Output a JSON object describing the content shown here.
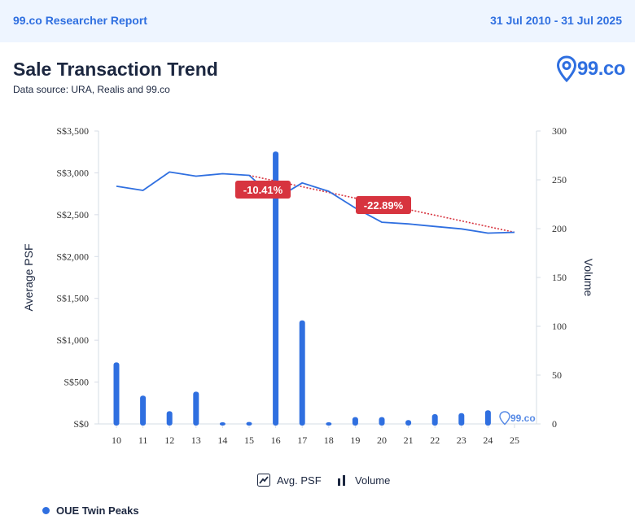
{
  "header": {
    "report_title": "99.co Researcher Report",
    "date_range": "31 Jul 2010 - 31 Jul 2025"
  },
  "page": {
    "title": "Sale Transaction Trend",
    "subtitle": "Data source: URA, Realis and 99.co"
  },
  "brand": {
    "logo_text": "99.co",
    "watermark_text": "99.co"
  },
  "legend": {
    "psf_label": "Avg. PSF",
    "volume_label": "Volume"
  },
  "footer": {
    "project_name": "OUE Twin Peaks"
  },
  "colors": {
    "accent": "#2f6fe0",
    "badge": "#d7343f",
    "trend": "#d7343f"
  },
  "chart_data": {
    "type": "bar",
    "categories": [
      "10",
      "11",
      "12",
      "13",
      "14",
      "15",
      "16",
      "17",
      "18",
      "19",
      "20",
      "21",
      "22",
      "23",
      "24",
      "25"
    ],
    "series": [
      {
        "name": "Avg. PSF",
        "type": "line",
        "axis": "left",
        "values": [
          2840,
          2790,
          3010,
          2960,
          2990,
          2970,
          2690,
          2880,
          2780,
          2580,
          2410,
          2390,
          2360,
          2330,
          2280,
          2290
        ]
      },
      {
        "name": "Volume",
        "type": "bar",
        "axis": "right",
        "values": [
          63,
          29,
          13,
          33,
          1,
          2,
          279,
          106,
          1,
          7,
          7,
          4,
          10,
          11,
          14,
          0
        ]
      }
    ],
    "trend_lines": [
      {
        "from": "15",
        "to": "25",
        "from_value": 2970,
        "to_value": 2290
      }
    ],
    "annotations": [
      {
        "text": "-10.41%",
        "at": "16"
      },
      {
        "text": "-22.89%",
        "at": "20"
      }
    ],
    "ylabel": "Average PSF",
    "y2label": "Volume",
    "ylim": [
      0,
      3500
    ],
    "y2lim": [
      0,
      300
    ],
    "yticks": [
      "S$0",
      "S$500",
      "S$1,000",
      "S$1,500",
      "S$2,000",
      "S$2,500",
      "S$3,000",
      "S$3,500"
    ],
    "y2ticks": [
      "0",
      "50",
      "100",
      "150",
      "200",
      "250",
      "300"
    ],
    "grid": false,
    "legend_position": "bottom-center"
  }
}
